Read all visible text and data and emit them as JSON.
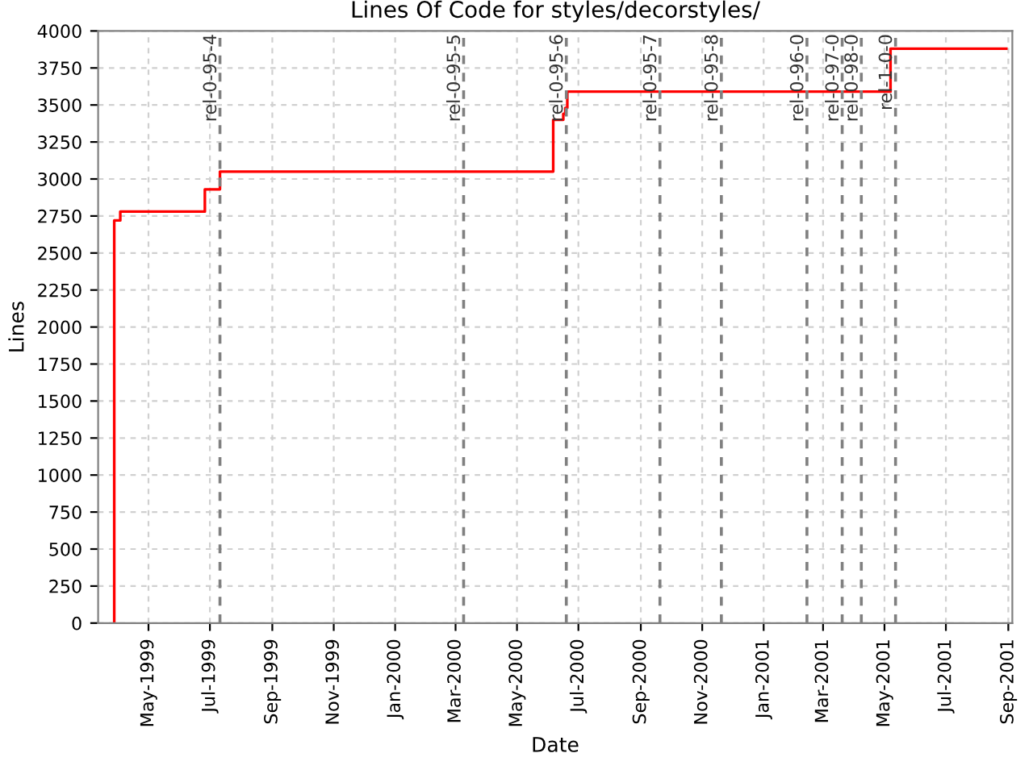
{
  "chart_data": {
    "type": "step",
    "title": "Lines Of Code for styles/decorstyles/",
    "xlabel": "Date",
    "ylabel": "Lines",
    "x": [
      "1999-03-28",
      "1999-03-28",
      "1999-04-03",
      "1999-06-26",
      "1999-07-11",
      "2000-06-06",
      "2000-06-16",
      "2000-06-18",
      "2000-06-20",
      "2001-05-07",
      "2001-08-30"
    ],
    "series": [
      {
        "color": "#ff0000",
        "values": [
          0,
          2720,
          2780,
          2930,
          3050,
          3400,
          3440,
          3480,
          3590,
          3880,
          3880
        ]
      }
    ],
    "xlim": [
      "1999-03-12",
      "2001-09-05"
    ],
    "xticks": [
      {
        "value": "1999-05-01",
        "label": "May-1999"
      },
      {
        "value": "1999-07-01",
        "label": "Jul-1999"
      },
      {
        "value": "1999-09-01",
        "label": "Sep-1999"
      },
      {
        "value": "1999-11-01",
        "label": "Nov-1999"
      },
      {
        "value": "2000-01-01",
        "label": "Jan-2000"
      },
      {
        "value": "2000-03-01",
        "label": "Mar-2000"
      },
      {
        "value": "2000-05-01",
        "label": "May-2000"
      },
      {
        "value": "2000-07-01",
        "label": "Jul-2000"
      },
      {
        "value": "2000-09-01",
        "label": "Sep-2000"
      },
      {
        "value": "2000-11-01",
        "label": "Nov-2000"
      },
      {
        "value": "2001-01-01",
        "label": "Jan-2001"
      },
      {
        "value": "2001-03-01",
        "label": "Mar-2001"
      },
      {
        "value": "2001-05-01",
        "label": "May-2001"
      },
      {
        "value": "2001-07-01",
        "label": "Jul-2001"
      },
      {
        "value": "2001-09-01",
        "label": "Sep-2001"
      }
    ],
    "ylim": [
      0,
      4000
    ],
    "yticks": [
      0,
      250,
      500,
      750,
      1000,
      1250,
      1500,
      1750,
      2000,
      2250,
      2500,
      2750,
      3000,
      3250,
      3500,
      3750,
      4000
    ],
    "ref_lines": [
      {
        "axis": "x",
        "value": "1999-07-11",
        "label": "rel-0-95-4",
        "color": "#808080",
        "line_style": "dashed"
      },
      {
        "axis": "x",
        "value": "2000-03-09",
        "label": "rel-0-95-5",
        "color": "#808080",
        "line_style": "dashed"
      },
      {
        "axis": "x",
        "value": "2000-06-19",
        "label": "rel-0-95-6",
        "color": "#808080",
        "line_style": "dashed"
      },
      {
        "axis": "x",
        "value": "2000-09-20",
        "label": "rel-0-95-7",
        "color": "#808080",
        "line_style": "dashed"
      },
      {
        "axis": "x",
        "value": "2000-11-20",
        "label": "rel-0-95-8",
        "color": "#808080",
        "line_style": "dashed"
      },
      {
        "axis": "x",
        "value": "2001-02-13",
        "label": "rel-0-96-0",
        "color": "#808080",
        "line_style": "dashed"
      },
      {
        "axis": "x",
        "value": "2001-03-20",
        "label": "rel-0-97-0",
        "color": "#808080",
        "line_style": "dashed"
      },
      {
        "axis": "x",
        "value": "2001-04-08",
        "label": "rel-0-98-0",
        "color": "#808080",
        "line_style": "dashed"
      },
      {
        "axis": "x",
        "value": "2001-05-12",
        "label": "rel-1-0-0",
        "color": "#808080",
        "line_style": "dashed"
      }
    ],
    "grid": true,
    "legend": false,
    "marker": "none",
    "line_style": "solid"
  }
}
